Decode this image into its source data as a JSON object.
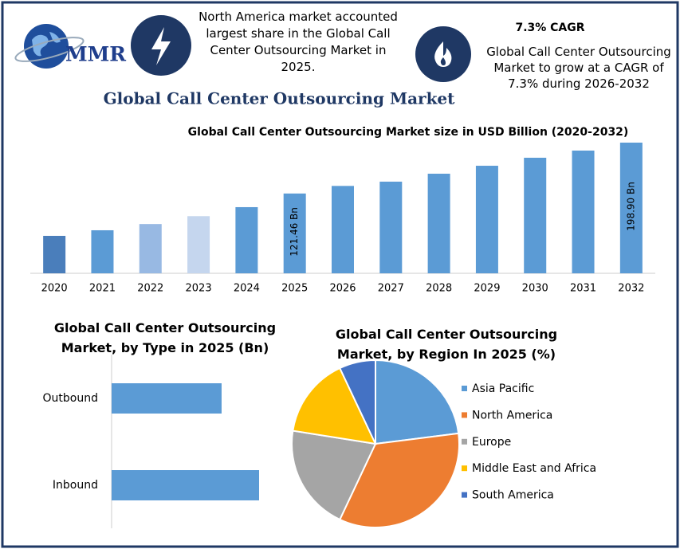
{
  "header": {
    "logo": "MMR",
    "highlight": "North America market accounted largest share in the Global Call Center Outsourcing Market in 2025.",
    "cagr_title": "7.3% CAGR",
    "cagr_text": "Global Call Center Outsourcing Market to grow at a CAGR of 7.3% during 2026-2032"
  },
  "title": "Global Call Center Outsourcing Market",
  "chart_data": [
    {
      "type": "bar",
      "title": "Global Call Center Outsourcing Market size in USD Billion (2020-2032)",
      "categories": [
        "2020",
        "2021",
        "2022",
        "2023",
        "2024",
        "2025",
        "2026",
        "2027",
        "2028",
        "2029",
        "2030",
        "2031",
        "2032"
      ],
      "values": [
        57,
        65.5,
        75,
        87,
        100.7,
        121.46,
        133,
        139.5,
        151.6,
        163.7,
        175.9,
        186.8,
        198.9
      ],
      "value_labels": [
        null,
        null,
        null,
        null,
        null,
        "121.46 Bn",
        null,
        null,
        null,
        null,
        null,
        null,
        "198.90 Bn"
      ],
      "colors": [
        "#4a7ebb",
        "#5b9bd5",
        "#98b9e3",
        "#c5d6ee",
        "#5b9bd5",
        "#5b9bd5",
        "#5b9bd5",
        "#5b9bd5",
        "#5b9bd5",
        "#5b9bd5",
        "#5b9bd5",
        "#5b9bd5",
        "#5b9bd5"
      ]
    },
    {
      "type": "hbar",
      "title": "Global Call Center Outsourcing Market, by Type in 2025 (Bn)",
      "categories": [
        "Outbound",
        "Inbound"
      ],
      "values": [
        51.9,
        69.6
      ],
      "color": "#5b9bd5"
    },
    {
      "type": "pie",
      "title": "Global Call Center Outsourcing Market, by Region In 2025 (%)",
      "categories": [
        "Asia Pacific",
        "North America",
        "Europe",
        "Middle East and Africa",
        "South America"
      ],
      "values": [
        23,
        34,
        20.5,
        15.5,
        7
      ],
      "colors": [
        "#5b9bd5",
        "#ed7d31",
        "#a5a5a5",
        "#ffc000",
        "#4472c4"
      ],
      "legend": "right"
    }
  ]
}
